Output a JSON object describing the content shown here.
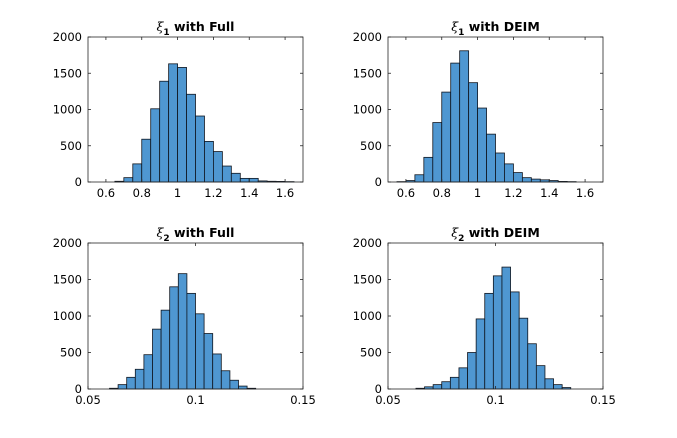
{
  "colors": {
    "bar_fill": "#4f97d1",
    "bar_edge": "#0f1620",
    "axis": "#262626",
    "background": "#ffffff"
  },
  "chart_data": [
    {
      "type": "bar",
      "title_symbol": "ξ",
      "title_subscript": "1",
      "title_text": " with Full",
      "xlabel": "",
      "ylabel": "",
      "xlim": [
        0.5,
        1.7
      ],
      "ylim": [
        0,
        2000
      ],
      "xticks": [
        "0.6",
        "0.8",
        "1",
        "1.2",
        "1.4",
        "1.6"
      ],
      "xtick_values": [
        0.6,
        0.8,
        1.0,
        1.2,
        1.4,
        1.6
      ],
      "yticks": [
        "0",
        "500",
        "1000",
        "1500",
        "2000"
      ],
      "ytick_values": [
        0,
        500,
        1000,
        1500,
        2000
      ],
      "bin_edges": [
        0.65,
        0.7,
        0.75,
        0.8,
        0.85,
        0.9,
        0.95,
        1.0,
        1.05,
        1.1,
        1.15,
        1.2,
        1.25,
        1.3,
        1.35,
        1.4,
        1.45,
        1.5,
        1.55,
        1.6,
        1.65
      ],
      "values": [
        10,
        60,
        250,
        590,
        1010,
        1390,
        1630,
        1580,
        1210,
        910,
        560,
        420,
        220,
        120,
        50,
        50,
        15,
        10,
        8,
        5
      ],
      "grid": false
    },
    {
      "type": "bar",
      "title_symbol": "ξ",
      "title_subscript": "1",
      "title_text": " with DEIM",
      "xlabel": "",
      "ylabel": "",
      "xlim": [
        0.5,
        1.7
      ],
      "ylim": [
        0,
        2000
      ],
      "xticks": [
        "0.6",
        "0.8",
        "1",
        "1.2",
        "1.4",
        "1.6"
      ],
      "xtick_values": [
        0.6,
        0.8,
        1.0,
        1.2,
        1.4,
        1.6
      ],
      "yticks": [
        "0",
        "500",
        "1000",
        "1500",
        "2000"
      ],
      "ytick_values": [
        0,
        500,
        1000,
        1500,
        2000
      ],
      "bin_edges": [
        0.55,
        0.6,
        0.65,
        0.7,
        0.75,
        0.8,
        0.85,
        0.9,
        0.95,
        1.0,
        1.05,
        1.1,
        1.15,
        1.2,
        1.25,
        1.3,
        1.35,
        1.4,
        1.45,
        1.5,
        1.55
      ],
      "values": [
        5,
        20,
        100,
        340,
        820,
        1240,
        1640,
        1810,
        1370,
        1020,
        660,
        400,
        250,
        130,
        60,
        40,
        30,
        20,
        8,
        5
      ],
      "grid": false
    },
    {
      "type": "bar",
      "title_symbol": "ξ",
      "title_subscript": "2",
      "title_text": " with Full",
      "xlabel": "",
      "ylabel": "",
      "xlim": [
        0.05,
        0.15
      ],
      "ylim": [
        0,
        2000
      ],
      "xticks": [
        "0.05",
        "0.1",
        "0.15"
      ],
      "xtick_values": [
        0.05,
        0.1,
        0.15
      ],
      "yticks": [
        "0",
        "500",
        "1000",
        "1500",
        "2000"
      ],
      "ytick_values": [
        0,
        500,
        1000,
        1500,
        2000
      ],
      "bin_edges": [
        0.06,
        0.064,
        0.068,
        0.072,
        0.076,
        0.08,
        0.084,
        0.088,
        0.092,
        0.096,
        0.1,
        0.104,
        0.108,
        0.112,
        0.116,
        0.12,
        0.124,
        0.128
      ],
      "values": [
        10,
        60,
        160,
        270,
        470,
        820,
        1080,
        1400,
        1580,
        1310,
        1030,
        760,
        480,
        250,
        120,
        40,
        10
      ],
      "grid": false
    },
    {
      "type": "bar",
      "title_symbol": "ξ",
      "title_subscript": "2",
      "title_text": " with DEIM",
      "xlabel": "",
      "ylabel": "",
      "xlim": [
        0.05,
        0.15
      ],
      "ylim": [
        0,
        2000
      ],
      "xticks": [
        "0.05",
        "0.1",
        "0.15"
      ],
      "xtick_values": [
        0.05,
        0.1,
        0.15
      ],
      "yticks": [
        "0",
        "500",
        "1000",
        "1500",
        "2000"
      ],
      "ytick_values": [
        0,
        500,
        1000,
        1500,
        2000
      ],
      "bin_edges": [
        0.063,
        0.067,
        0.071,
        0.075,
        0.079,
        0.083,
        0.087,
        0.091,
        0.095,
        0.099,
        0.103,
        0.107,
        0.111,
        0.115,
        0.119,
        0.123,
        0.127,
        0.131,
        0.135
      ],
      "values": [
        10,
        30,
        60,
        100,
        160,
        290,
        500,
        960,
        1310,
        1550,
        1670,
        1330,
        970,
        620,
        320,
        140,
        60,
        20
      ],
      "grid": false
    }
  ]
}
